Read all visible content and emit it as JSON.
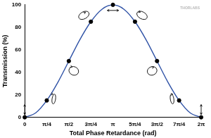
{
  "chart_data": {
    "type": "line",
    "x_label": "Total Phase Retardance (rad)",
    "y_label": "Transmission (%)",
    "annotations": [
      "THORLABS"
    ],
    "xlim": [
      0,
      6.2832
    ],
    "xticks": [
      0,
      {
        "value": 0.7854,
        "label": "π/4"
      },
      {
        "value": 1.5708,
        "label": "π/2"
      },
      {
        "value": 2.3562,
        "label": "3π/4"
      },
      {
        "value": 3.1416,
        "label": "π"
      },
      {
        "value": 3.927,
        "label": "5π/4"
      },
      {
        "value": 4.7124,
        "label": "3π/2"
      },
      {
        "value": 5.4978,
        "label": "7π/4"
      },
      {
        "value": 6.2832,
        "label": "2π"
      }
    ],
    "ylim": [
      0,
      100
    ],
    "yticks": [
      0,
      20,
      40,
      60,
      80,
      100
    ],
    "grid": false,
    "series": [
      {
        "type": "line",
        "color": "#2f52a6",
        "line_style": "solid",
        "x": [
          0,
          0.3927,
          0.7854,
          1.1781,
          1.5708,
          1.9635,
          2.3562,
          2.7489,
          3.1416,
          3.5343,
          3.927,
          4.3197,
          4.7124,
          5.1051,
          5.4978,
          5.8905,
          6.2832
        ],
        "values": [
          0,
          4,
          15,
          31,
          50,
          69,
          85,
          96,
          100,
          96,
          85,
          69,
          50,
          31,
          15,
          4,
          0
        ]
      },
      {
        "type": "scatter",
        "color": "#000000",
        "marker": "circle",
        "x": [
          0,
          0.7854,
          1.5708,
          2.3562,
          3.1416,
          3.927,
          4.7124,
          5.4978,
          6.2832
        ],
        "values": [
          0,
          15,
          50,
          85,
          100,
          85,
          50,
          15,
          0
        ]
      }
    ]
  }
}
